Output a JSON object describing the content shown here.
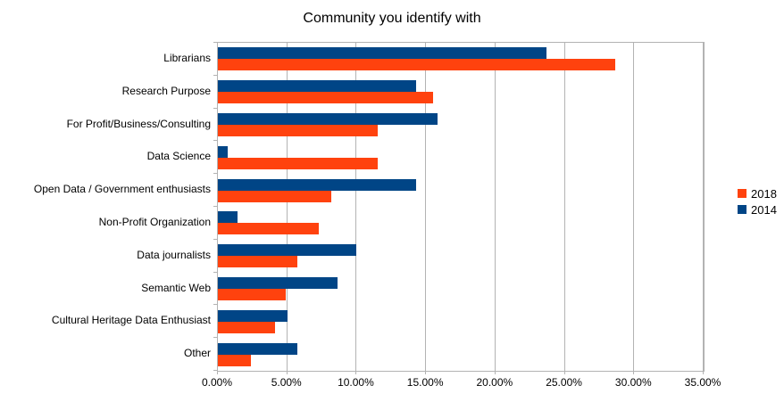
{
  "chart_data": {
    "type": "bar",
    "orientation": "horizontal",
    "title": "Community you identify with",
    "categories": [
      "Librarians",
      "Research Purpose",
      "For Profit/Business/Consulting",
      "Data Science",
      "Open Data / Government enthusiasts",
      "Non-Profit Organization",
      "Data journalists",
      "Semantic Web",
      "Cultural Heritage Data Enthusiast",
      "Other"
    ],
    "series": [
      {
        "name": "2018",
        "color": "#FF420E",
        "values": [
          28.6,
          15.5,
          11.5,
          11.5,
          8.2,
          7.3,
          5.7,
          4.9,
          4.1,
          2.4
        ]
      },
      {
        "name": "2014",
        "color": "#004586",
        "values": [
          23.7,
          14.3,
          15.8,
          0.7,
          14.3,
          1.4,
          10.0,
          8.6,
          5.0,
          5.7
        ]
      }
    ],
    "bar_order_top_to_bottom": [
      "2014",
      "2018"
    ],
    "xlabel": "",
    "ylabel": "",
    "xlim": [
      0,
      35
    ],
    "x_ticks": [
      {
        "value": 0,
        "label": "0.00%"
      },
      {
        "value": 5,
        "label": "5.00%"
      },
      {
        "value": 10,
        "label": "10.00%"
      },
      {
        "value": 15,
        "label": "15.00%"
      },
      {
        "value": 20,
        "label": "20.00%"
      },
      {
        "value": 25,
        "label": "25.00%"
      },
      {
        "value": 30,
        "label": "30.00%"
      },
      {
        "value": 35,
        "label": "35.00%"
      }
    ],
    "grid": "vertical-major",
    "legend_position": "right",
    "legend_order": [
      "2018",
      "2014"
    ],
    "colors": {
      "grid": "#b3b3b3",
      "text": "#000000",
      "background": "#ffffff"
    }
  }
}
